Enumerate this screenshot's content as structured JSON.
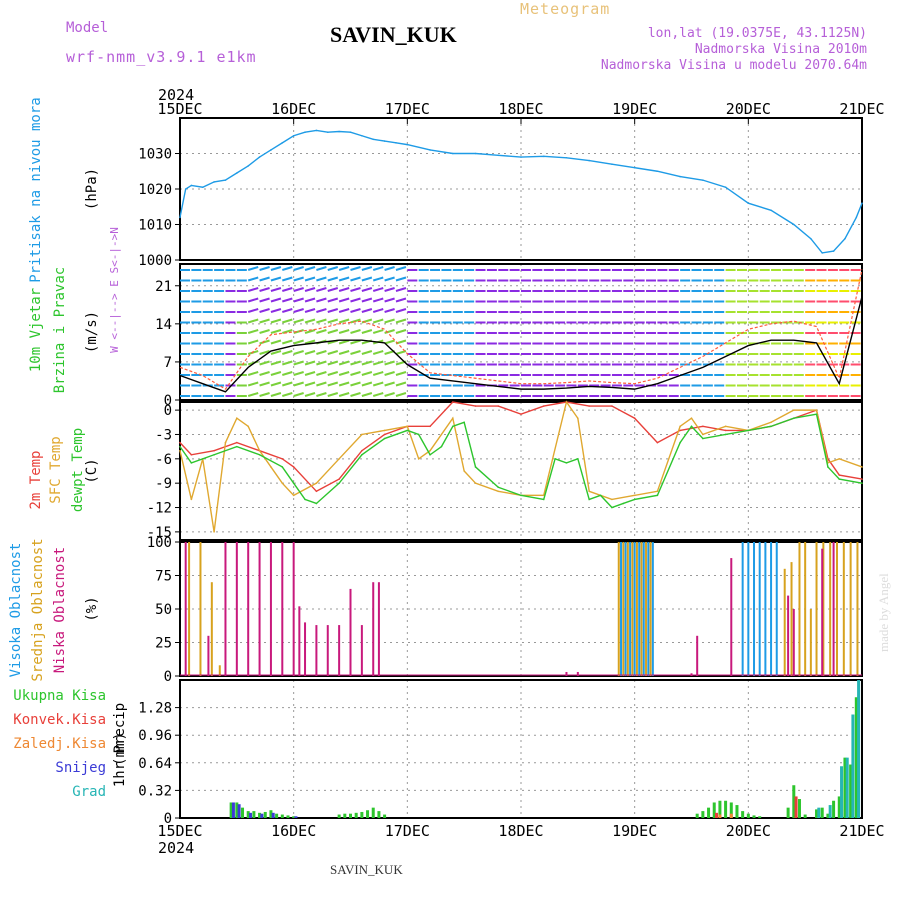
{
  "header": {
    "model_label": "Model",
    "model_name": "wrf-nmm_v3.9.1  e1km",
    "station": "SAVIN_KUK",
    "product": "Meteogram",
    "lonlat": "lon,lat (19.0375E, 43.1125N)",
    "elevation": "Nadmorska Visina 2010m",
    "model_elevation": "Nadmorska Visina u modelu 2070.64m",
    "footer_station": "SAVIN_KUK",
    "credit": "made by Angel",
    "colors": {
      "model": "#b65fd8",
      "station": "#000000",
      "product": "#e8c27a",
      "info": "#b65fd8",
      "credit": "#dddddd"
    }
  },
  "time_axis": {
    "year": "2024",
    "ticks": [
      "15DEC",
      "16DEC",
      "17DEC",
      "18DEC",
      "19DEC",
      "20DEC",
      "21DEC"
    ]
  },
  "chart_data": [
    {
      "type": "line",
      "panel": "pressure",
      "ylabel_left": "Pritisak na nivou mora",
      "unit": "(hPa)",
      "ylim": [
        1000,
        1040
      ],
      "yticks": [
        "1000",
        "1010",
        "1020",
        "1030"
      ],
      "x_unit": "days since 15DEC 00UTC",
      "grid": true,
      "series": [
        {
          "name": "",
          "color": "#1e9be6",
          "x": [
            0,
            0.05,
            0.1,
            0.2,
            0.3,
            0.4,
            0.5,
            0.6,
            0.7,
            0.8,
            0.9,
            1.0,
            1.1,
            1.2,
            1.3,
            1.4,
            1.5,
            1.6,
            1.7,
            1.8,
            1.9,
            2.0,
            2.2,
            2.4,
            2.6,
            2.8,
            3.0,
            3.2,
            3.4,
            3.6,
            3.8,
            4.0,
            4.2,
            4.4,
            4.6,
            4.8,
            5.0,
            5.2,
            5.4,
            5.55,
            5.65,
            5.75,
            5.85,
            5.95,
            6.0
          ],
          "y": [
            1012,
            1020,
            1021,
            1020.5,
            1022,
            1022.5,
            1024.5,
            1026.5,
            1029,
            1031,
            1033,
            1035,
            1036,
            1036.5,
            1036,
            1036.2,
            1036,
            1035,
            1034,
            1033.5,
            1033,
            1032.5,
            1031,
            1030,
            1030,
            1029.5,
            1029,
            1029.2,
            1028.8,
            1028,
            1027,
            1026,
            1025,
            1023.5,
            1022.5,
            1020.5,
            1016,
            1014,
            1010,
            1006,
            1002,
            1002.5,
            1006,
            1012,
            1016
          ]
        }
      ]
    },
    {
      "type": "line",
      "panel": "wind",
      "ylabel_left": [
        "10m Vjetar",
        "Brzina i Pravac"
      ],
      "unit": "(m/s)",
      "compass": "W <--|--> E  S<-|->N",
      "ylim": [
        0,
        25
      ],
      "yticks": [
        "0",
        "7",
        "14",
        "21"
      ],
      "grid": true,
      "series": [
        {
          "name": "",
          "color": "#000000",
          "x": [
            0,
            0.2,
            0.4,
            0.6,
            0.8,
            1.0,
            1.2,
            1.4,
            1.6,
            1.8,
            2.0,
            2.2,
            2.4,
            2.6,
            2.8,
            3.0,
            3.2,
            3.4,
            3.6,
            3.8,
            4.0,
            4.2,
            4.4,
            4.6,
            4.8,
            5.0,
            5.2,
            5.4,
            5.6,
            5.8,
            6.0
          ],
          "y": [
            4.5,
            3,
            1.5,
            6,
            9,
            10,
            10.5,
            11,
            11,
            10.5,
            6.5,
            4,
            3.5,
            3,
            2.5,
            2,
            2,
            2.2,
            2.5,
            2.3,
            2,
            3,
            4.5,
            6,
            8,
            10,
            11,
            11,
            10.5,
            3,
            19
          ]
        },
        {
          "name": "",
          "color": "#ff5a3c",
          "x": [
            0,
            0.2,
            0.4,
            0.6,
            0.8,
            1.0,
            1.2,
            1.4,
            1.6,
            1.8,
            2.0,
            2.2,
            2.4,
            2.6,
            2.8,
            3.0,
            3.2,
            3.4,
            3.6,
            3.8,
            4.0,
            4.2,
            4.4,
            4.6,
            4.8,
            5.0,
            5.2,
            5.4,
            5.6,
            5.8,
            6.0
          ],
          "y": [
            6,
            4.5,
            2,
            8,
            12,
            12.5,
            13,
            14,
            14.5,
            13,
            8.5,
            5,
            4.5,
            4,
            3.5,
            3,
            3,
            3.2,
            3.5,
            3.2,
            3,
            4,
            6,
            8,
            10.5,
            13,
            14,
            14.5,
            13.5,
            4,
            24
          ]
        }
      ]
    },
    {
      "type": "line",
      "panel": "temperature",
      "ylabel_left": [
        "2m Temp",
        "SFC Temp",
        "dewpt Temp"
      ],
      "unit": "(C)",
      "ylim": [
        -16,
        1
      ],
      "yticks": [
        "0",
        "-3",
        "-6",
        "-9",
        "-12",
        "-15"
      ],
      "grid": true,
      "series": [
        {
          "name": "2m Temp",
          "color": "#e8403a",
          "x": [
            0,
            0.1,
            0.3,
            0.5,
            0.7,
            0.9,
            1.0,
            1.2,
            1.4,
            1.6,
            1.8,
            2.0,
            2.2,
            2.4,
            2.6,
            2.8,
            3.0,
            3.2,
            3.4,
            3.6,
            3.8,
            4.0,
            4.2,
            4.4,
            4.6,
            4.8,
            5.0,
            5.2,
            5.4,
            5.6,
            5.7,
            5.8,
            6.0
          ],
          "y": [
            -4,
            -5.5,
            -5,
            -4,
            -5,
            -6,
            -7,
            -10,
            -8.5,
            -5,
            -3,
            -2,
            -2,
            1,
            0.5,
            0.5,
            -0.5,
            0.5,
            1,
            0.5,
            0.5,
            -1,
            -4,
            -2.5,
            -2,
            -2.5,
            -2.5,
            -2,
            -1,
            0,
            -6,
            -8,
            -8.5
          ]
        },
        {
          "name": "SFC Temp",
          "color": "#e0a830",
          "x": [
            0,
            0.1,
            0.2,
            0.3,
            0.4,
            0.5,
            0.6,
            0.7,
            0.8,
            0.9,
            1.0,
            1.2,
            1.4,
            1.6,
            1.8,
            2.0,
            2.1,
            2.2,
            2.4,
            2.5,
            2.6,
            2.8,
            3.0,
            3.2,
            3.4,
            3.5,
            3.6,
            3.8,
            4.0,
            4.2,
            4.4,
            4.5,
            4.6,
            4.8,
            5.0,
            5.2,
            5.4,
            5.6,
            5.7,
            5.8,
            6.0
          ],
          "y": [
            -5,
            -11,
            -6,
            -15,
            -4,
            -1,
            -2,
            -5,
            -7,
            -9,
            -10.5,
            -9,
            -6,
            -3,
            -2.5,
            -2,
            -6,
            -5,
            -1,
            -7.5,
            -9,
            -10,
            -10.5,
            -10.5,
            1,
            -1,
            -10,
            -11,
            -10.5,
            -10,
            -2,
            -1,
            -3,
            -2,
            -2.5,
            -1.5,
            0,
            0,
            -6.5,
            -6,
            -7
          ]
        },
        {
          "name": "dewpt Temp",
          "color": "#2dc52d",
          "x": [
            0,
            0.1,
            0.3,
            0.5,
            0.7,
            0.9,
            1.0,
            1.1,
            1.2,
            1.4,
            1.6,
            1.8,
            2.0,
            2.1,
            2.2,
            2.3,
            2.4,
            2.5,
            2.6,
            2.8,
            3.0,
            3.2,
            3.3,
            3.4,
            3.5,
            3.6,
            3.7,
            3.8,
            3.9,
            4.0,
            4.2,
            4.4,
            4.5,
            4.6,
            4.8,
            5.0,
            5.2,
            5.4,
            5.6,
            5.7,
            5.8,
            6.0
          ],
          "y": [
            -4.5,
            -6.5,
            -5.5,
            -4.5,
            -5.5,
            -7,
            -9,
            -11,
            -11.5,
            -9,
            -5.5,
            -3.5,
            -2.5,
            -3,
            -5.5,
            -4.5,
            -2,
            -1.5,
            -7,
            -9.5,
            -10.5,
            -11,
            -6,
            -6.5,
            -6,
            -11,
            -10.5,
            -12,
            -11.5,
            -11,
            -10.5,
            -4,
            -2,
            -3.5,
            -3,
            -2.5,
            -2,
            -1,
            -0.5,
            -7,
            -8.5,
            -9
          ]
        }
      ]
    },
    {
      "type": "bar",
      "panel": "cloud_cover",
      "ylabel_left": [
        "Visoka Oblacnost",
        "Srednja Oblacnost",
        "Niska Oblacnost"
      ],
      "unit": "(%)",
      "ylim": [
        0,
        100
      ],
      "yticks": [
        "0",
        "25",
        "50",
        "75",
        "100"
      ],
      "grid": true,
      "series": [
        {
          "name": "Visoka Oblacnost",
          "color": "#1e9be6",
          "x": [
            3.88,
            3.92,
            3.96,
            4.0,
            4.04,
            4.08,
            4.12,
            4.16,
            4.95,
            5.0,
            5.05,
            5.1,
            5.15,
            5.2,
            5.25
          ],
          "values": [
            100,
            100,
            100,
            100,
            100,
            100,
            100,
            100,
            100,
            100,
            100,
            100,
            100,
            100,
            100
          ]
        },
        {
          "name": "Srednja Oblacnost",
          "color": "#d7a21e",
          "x": [
            0.08,
            0.18,
            0.28,
            0.35,
            3.86,
            3.9,
            3.94,
            3.98,
            4.02,
            4.06,
            4.1,
            4.14,
            5.32,
            5.38,
            5.45,
            5.5,
            5.55,
            5.6,
            5.66,
            5.72,
            5.78,
            5.84,
            5.9,
            5.96
          ],
          "values": [
            100,
            100,
            70,
            8,
            100,
            100,
            100,
            100,
            100,
            100,
            100,
            100,
            80,
            85,
            100,
            100,
            50,
            100,
            100,
            100,
            100,
            100,
            100,
            100
          ]
        },
        {
          "name": "Niska Oblacnost",
          "color": "#c8197c",
          "x": [
            0.05,
            0.25,
            0.4,
            0.5,
            0.6,
            0.7,
            0.8,
            0.9,
            1.0,
            1.05,
            1.1,
            1.2,
            1.3,
            1.4,
            1.5,
            1.6,
            1.7,
            1.75,
            3.4,
            3.5,
            4.5,
            4.55,
            4.85,
            5.35,
            5.4,
            5.65,
            5.75
          ],
          "values": [
            100,
            30,
            100,
            100,
            100,
            100,
            100,
            100,
            100,
            52,
            40,
            38,
            38,
            38,
            65,
            38,
            70,
            70,
            3,
            3,
            2,
            30,
            88,
            60,
            50,
            95,
            100
          ]
        }
      ]
    },
    {
      "type": "bar",
      "panel": "precipitation",
      "ylabel_left": "1hr Precip",
      "unit": "(mm)",
      "ylim": [
        0,
        1.6
      ],
      "yticks": [
        "0",
        "0.32",
        "0.64",
        "0.96",
        "1.28"
      ],
      "legend_left": [
        "Ukupna Kisa",
        "Konvek.Kisa",
        "Zaledj.Kisa",
        "Snijeg",
        "Grad"
      ],
      "grid": true,
      "series": [
        {
          "name": "Ukupna Kisa",
          "color": "#2dc52d",
          "x": [
            0.45,
            0.5,
            0.55,
            0.6,
            0.65,
            0.7,
            0.75,
            0.8,
            0.85,
            0.9,
            0.95,
            1.0,
            1.4,
            1.45,
            1.5,
            1.55,
            1.6,
            1.65,
            1.7,
            1.75,
            1.8,
            4.55,
            4.6,
            4.65,
            4.7,
            4.75,
            4.8,
            4.85,
            4.9,
            4.95,
            5.0,
            5.05,
            5.1,
            5.35,
            5.4,
            5.45,
            5.5,
            5.6,
            5.65,
            5.7,
            5.75,
            5.8,
            5.85,
            5.9,
            5.95
          ],
          "values": [
            0.18,
            0.18,
            0.12,
            0.08,
            0.08,
            0.06,
            0.07,
            0.09,
            0.05,
            0.04,
            0.03,
            0.02,
            0.04,
            0.05,
            0.05,
            0.06,
            0.07,
            0.09,
            0.12,
            0.08,
            0.04,
            0.05,
            0.08,
            0.12,
            0.18,
            0.2,
            0.2,
            0.18,
            0.15,
            0.08,
            0.05,
            0.03,
            0.02,
            0.12,
            0.38,
            0.22,
            0.04,
            0.1,
            0.12,
            0.05,
            0.2,
            0.25,
            0.7,
            0.62,
            1.4
          ]
        },
        {
          "name": "Snijeg",
          "color": "#3b3bd6",
          "x": [
            0.47,
            0.52,
            0.62,
            0.72,
            0.82,
            1.02
          ],
          "values": [
            0.18,
            0.16,
            0.06,
            0.05,
            0.06,
            0.02
          ]
        },
        {
          "name": "Grad",
          "color": "#26b5b5",
          "x": [
            5.62,
            5.72,
            5.82,
            5.87,
            5.92,
            5.97
          ],
          "values": [
            0.12,
            0.15,
            0.6,
            0.7,
            1.2,
            1.6
          ]
        },
        {
          "name": "Konvek.Kisa",
          "color": "#e8403a",
          "x": [
            4.72,
            5.42
          ],
          "values": [
            0.06,
            0.25
          ]
        },
        {
          "name": "Zaledj.Kisa",
          "color": "#ee8833",
          "x": [
            4.75,
            4.85
          ],
          "values": [
            0.04,
            0.05
          ]
        }
      ]
    }
  ]
}
